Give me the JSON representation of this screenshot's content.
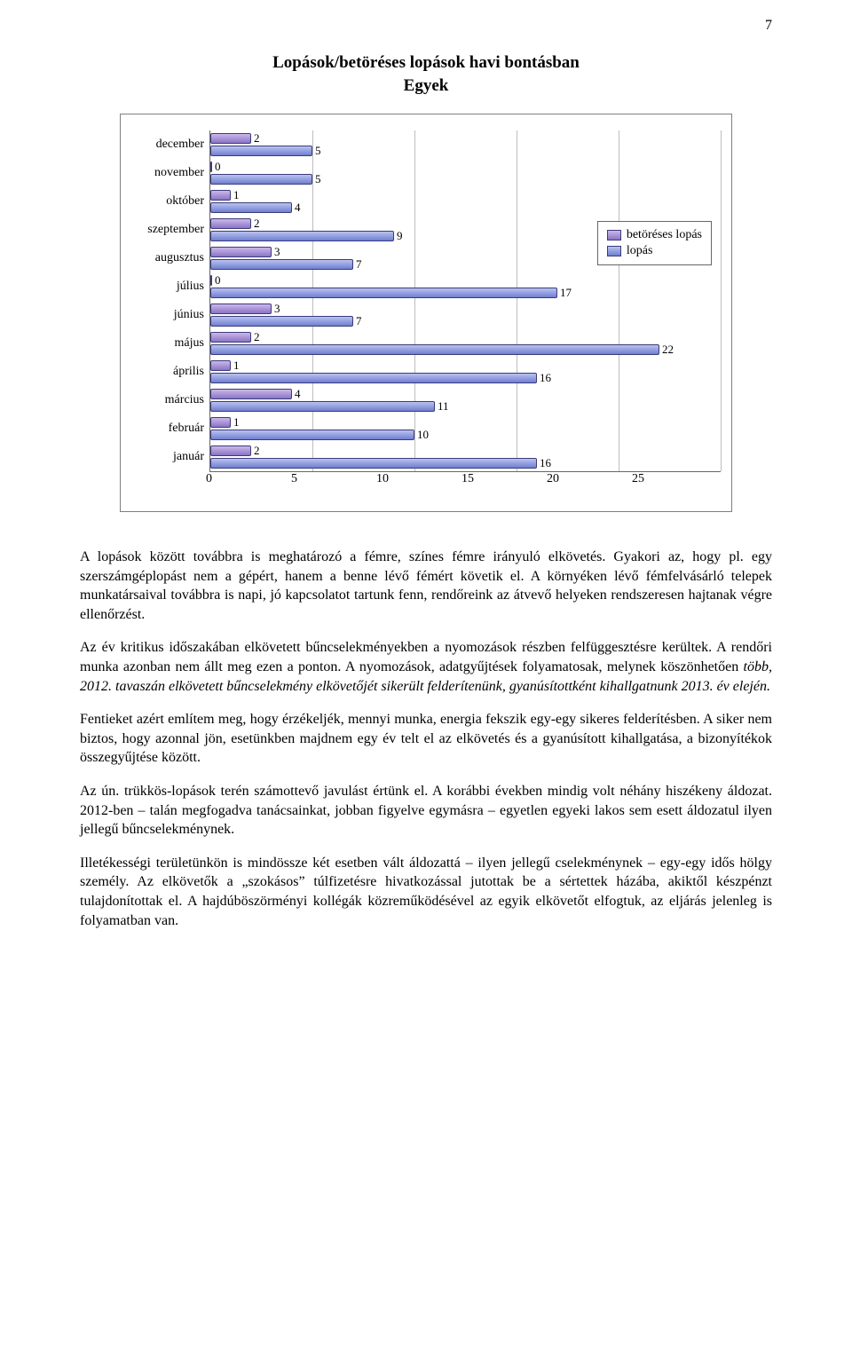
{
  "page_number": "7",
  "title_line1": "Lopások/betöréses lopások havi bontásban",
  "title_line2": "Egyek",
  "legend": {
    "series1": "betöréses lopás",
    "series2": "lopás"
  },
  "axis": {
    "max": 25,
    "step": 5,
    "ticks": [
      "0",
      "5",
      "10",
      "15",
      "20",
      "25"
    ]
  },
  "chart": {
    "type": "horizontal-bar",
    "bar_top_gradient": [
      "#cbb7ea",
      "#8a74c5"
    ],
    "bar_bot_gradient": [
      "#b9c2f0",
      "#6f7fd0"
    ],
    "border_color": "#3b3b7a",
    "grid_color": "#bdbdbd",
    "frame_color": "#808080",
    "background": "#ffffff",
    "label_fontsize": 14,
    "value_fontsize": 13
  },
  "rows": [
    {
      "label": "december",
      "v1": 2,
      "v2": 5
    },
    {
      "label": "november",
      "v1": 0,
      "v2": 5
    },
    {
      "label": "október",
      "v1": 1,
      "v2": 4
    },
    {
      "label": "szeptember",
      "v1": 2,
      "v2": 9
    },
    {
      "label": "augusztus",
      "v1": 3,
      "v2": 7
    },
    {
      "label": "július",
      "v1": 0,
      "v2": 17
    },
    {
      "label": "június",
      "v1": 3,
      "v2": 7
    },
    {
      "label": "május",
      "v1": 2,
      "v2": 22
    },
    {
      "label": "április",
      "v1": 1,
      "v2": 16
    },
    {
      "label": "március",
      "v1": 4,
      "v2": 11
    },
    {
      "label": "február",
      "v1": 1,
      "v2": 10
    },
    {
      "label": "január",
      "v1": 2,
      "v2": 16
    }
  ],
  "paragraphs": {
    "p1": "A lopások között továbbra is meghatározó a fémre, színes fémre irányuló elkövetés. Gyakori az, hogy pl. egy szerszámgéplopást nem a gépért, hanem a benne lévő fémért követik el. A környéken lévő fémfelvásárló telepek munkatársaival továbbra is napi, jó kapcsolatot tartunk fenn, rendőreink az átvevő helyeken rendszeresen hajtanak végre ellenőrzést.",
    "p2a": "Az év kritikus időszakában elkövetett bűncselekményekben a nyomozások részben felfüggesztésre kerültek. A rendőri munka azonban nem állt meg ezen a ponton. A nyomozások, adatgyűjtések folyamatosak, melynek köszönhetően ",
    "p2b": "több, 2012. tavaszán elkövetett bűncselekmény elkövetőjét sikerült felderítenünk, gyanúsítottként kihallgatnunk 2013. év elején.",
    "p3": "Fentieket azért említem meg, hogy érzékeljék, mennyi munka, energia fekszik egy-egy sikeres felderítésben. A siker nem biztos, hogy azonnal jön, esetünkben majdnem egy év telt el az elkövetés és a gyanúsított kihallgatása, a bizonyítékok összegyűjtése között.",
    "p4": "Az ún. trükkös-lopások terén számottevő javulást értünk el. A korábbi években mindig volt néhány hiszékeny áldozat. 2012-ben – talán megfogadva tanácsainkat, jobban figyelve egymásra – egyetlen egyeki lakos sem esett áldozatul ilyen jellegű bűncselekménynek.",
    "p5": "Illetékességi területünkön is mindössze két esetben vált áldozattá – ilyen jellegű cselekménynek – egy-egy idős hölgy személy. Az elkövetők a „szokásos” túlfizetésre hivatkozással jutottak be a sértettek házába, akiktől készpénzt tulajdonítottak el. A hajdúböszörményi kollégák közreműködésével az egyik elkövetőt elfogtuk, az eljárás jelenleg is folyamatban van."
  }
}
